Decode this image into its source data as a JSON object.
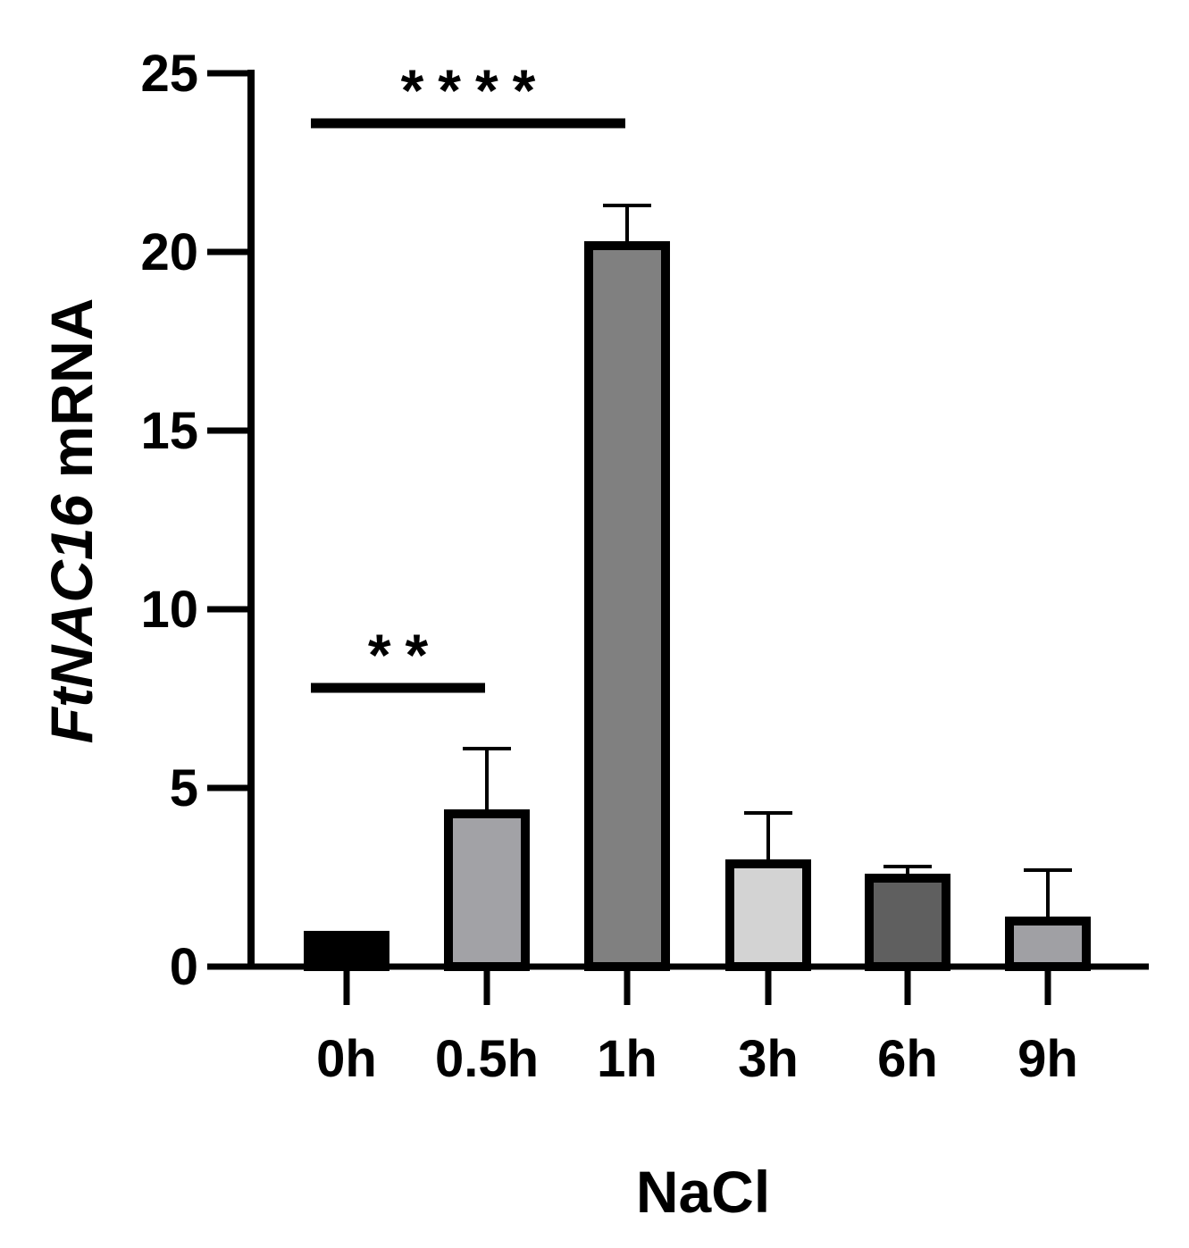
{
  "chart_data": {
    "type": "bar",
    "categories": [
      "0h",
      "0.5h",
      "1h",
      "3h",
      "6h",
      "9h"
    ],
    "values": [
      1.0,
      4.4,
      20.3,
      3.0,
      2.6,
      1.4
    ],
    "error_upper": [
      0.0,
      1.7,
      1.0,
      1.3,
      0.2,
      1.3
    ],
    "colors": [
      "#000000",
      "#a2a2a6",
      "#808080",
      "#d3d3d3",
      "#5f5f5f",
      "#a0a0a4"
    ],
    "ylabel_italic": "FtNAC16",
    "ylabel_rest": " mRNA",
    "xlabel": "NaCl",
    "ylim": [
      0,
      25
    ],
    "yticks": [
      0,
      5,
      10,
      15,
      20,
      25
    ],
    "grid": false,
    "legend": "none",
    "significance": [
      {
        "from": "0h",
        "to": "1h",
        "label": "****",
        "y": 23.6
      },
      {
        "from": "0h",
        "to": "0.5h",
        "label": "**",
        "y": 7.8
      }
    ]
  }
}
